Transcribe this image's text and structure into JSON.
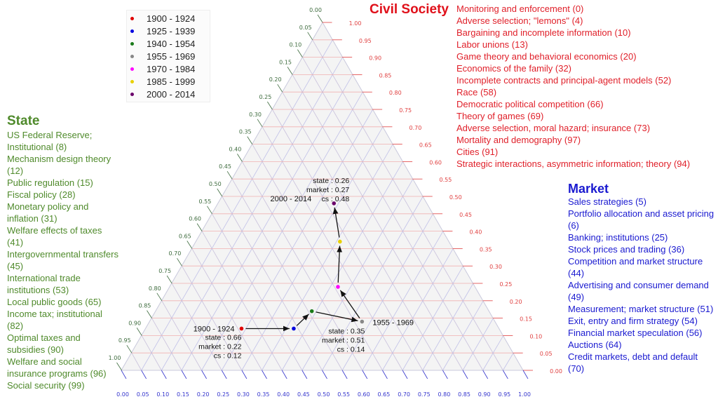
{
  "state": {
    "title": "State",
    "items": [
      "US Federal Reserve; Institutional (8)",
      "Mechanism design theory (12)",
      "Public regulation (15)",
      "Fiscal policy (28)",
      "Monetary policy and inflation (31)",
      "Welfare effects of taxes (41)",
      "Intergovernmental transfers (45)",
      "International trade institutions (53)",
      "Local public goods (65)",
      "Income tax; institutional (82)",
      "Optimal taxes and subsidies (90)",
      "Welfare and social insurance programs (96)",
      "Social security (99)"
    ]
  },
  "market": {
    "title": "Market",
    "items": [
      "Sales strategies (5)",
      "Portfolio allocation and asset pricing (6)",
      "Banking; institutions (25)",
      "Stock prices and trading (36)",
      "Competition and market structure (44)",
      "Advertising and consumer demand (49)",
      "Measurement; market structure (51)",
      "Exit, entry and firm strategy (54)",
      "Financial market speculation (56)",
      "Auctions (64)",
      "Credit markets, debt and default (70)"
    ]
  },
  "civil_society": {
    "title": "Civil Society",
    "items": [
      "Monitoring and enforcement (0)",
      "Adverse selection; \"lemons\" (4)",
      "Bargaining and incomplete information (10)",
      "Labor unions (13)",
      "Game theory and behavioral economics (20)",
      "Economics of the family (32)",
      "Incomplete contracts and principal-agent models (52)",
      "Race (58)",
      "Democratic political competition (66)",
      "Theory of games (69)",
      "Adverse selection, moral hazard; insurance (73)",
      "Mortality and demography (97)",
      "Cities (91)",
      "Strategic interactions, asymmetric information; theory (94)"
    ]
  },
  "chart_data": {
    "type": "scatter",
    "subtype": "ternary",
    "axes": {
      "left": "state",
      "bottom": "market",
      "right": "cs"
    },
    "ticks": [
      "0.00",
      "0.05",
      "0.10",
      "0.15",
      "0.20",
      "0.25",
      "0.30",
      "0.35",
      "0.40",
      "0.45",
      "0.50",
      "0.55",
      "0.60",
      "0.65",
      "0.70",
      "0.75",
      "0.80",
      "0.85",
      "0.90",
      "0.95",
      "1.00"
    ],
    "colors": {
      "state": "#3d6b3d",
      "market": "#3333cc",
      "cs": "#e04040"
    },
    "legend_position": "top-left",
    "series": [
      {
        "name": "1900 - 1924",
        "color": "#e00000",
        "state": 0.66,
        "market": 0.22,
        "cs": 0.12
      },
      {
        "name": "1925 - 1939",
        "color": "#0000e0",
        "state": 0.53,
        "market": 0.35,
        "cs": 0.12
      },
      {
        "name": "1940 - 1954",
        "color": "#1a7a1a",
        "state": 0.46,
        "market": 0.37,
        "cs": 0.17
      },
      {
        "name": "1955 - 1969",
        "color": "#888888",
        "state": 0.35,
        "market": 0.51,
        "cs": 0.14
      },
      {
        "name": "1970 - 1984",
        "color": "#ff00ff",
        "state": 0.36,
        "market": 0.4,
        "cs": 0.24
      },
      {
        "name": "1985 - 1999",
        "color": "#e8d000",
        "state": 0.29,
        "market": 0.34,
        "cs": 0.37
      },
      {
        "name": "2000 - 2014",
        "color": "#6a006a",
        "state": 0.26,
        "market": 0.27,
        "cs": 0.48
      }
    ],
    "annotations": [
      {
        "period": "1900 - 1924",
        "lines": [
          "state : 0.66",
          "market : 0.22",
          "cs : 0.12"
        ]
      },
      {
        "period": "1955 - 1969",
        "lines": [
          "state : 0.35",
          "market : 0.51",
          "cs : 0.14"
        ]
      },
      {
        "period": "2000 - 2014",
        "lines": [
          "state : 0.26",
          "market : 0.27",
          "cs : 0.48"
        ]
      }
    ]
  }
}
